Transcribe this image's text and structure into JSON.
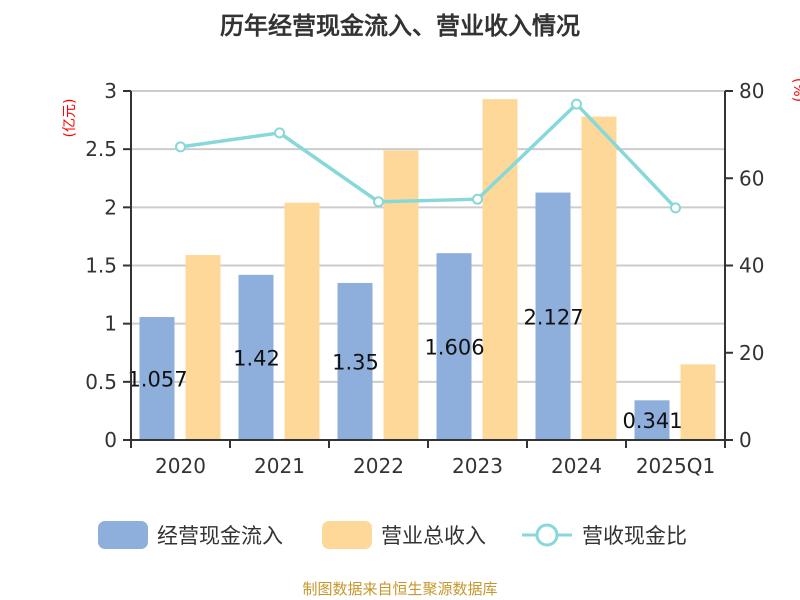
{
  "chart_data": {
    "type": "bar",
    "title": "历年经营现金流入、营业收入情况",
    "categories": [
      "2020",
      "2021",
      "2022",
      "2023",
      "2024",
      "2025Q1"
    ],
    "series": [
      {
        "name": "经营现金流入",
        "type": "bar",
        "axis": "left",
        "color": "#8eaedb",
        "values": [
          1.057,
          1.42,
          1.35,
          1.606,
          2.127,
          0.341
        ],
        "labels": [
          "1.057",
          "1.42",
          "1.35",
          "1.606",
          "2.127",
          "0.341"
        ]
      },
      {
        "name": "营业总收入",
        "type": "bar",
        "axis": "left",
        "color": "#fed899",
        "values": [
          1.59,
          2.04,
          2.49,
          2.93,
          2.78,
          0.65
        ]
      },
      {
        "name": "营收现金比",
        "type": "line",
        "axis": "right",
        "color": "#88d8d9",
        "values": [
          67.2,
          70.4,
          54.6,
          55.2,
          77.0,
          53.2
        ]
      }
    ],
    "ylabel": "(亿元)",
    "y2label": "(%)",
    "ylim": [
      0,
      3
    ],
    "yticks": [
      "0",
      "0.5",
      "1",
      "1.5",
      "2",
      "2.5",
      "3"
    ],
    "y2lim": [
      0,
      80
    ],
    "y2ticks": [
      "0",
      "20",
      "40",
      "60",
      "80"
    ],
    "legend_position": "bottom",
    "grid": true
  },
  "source": "制图数据来自恒生聚源数据库"
}
